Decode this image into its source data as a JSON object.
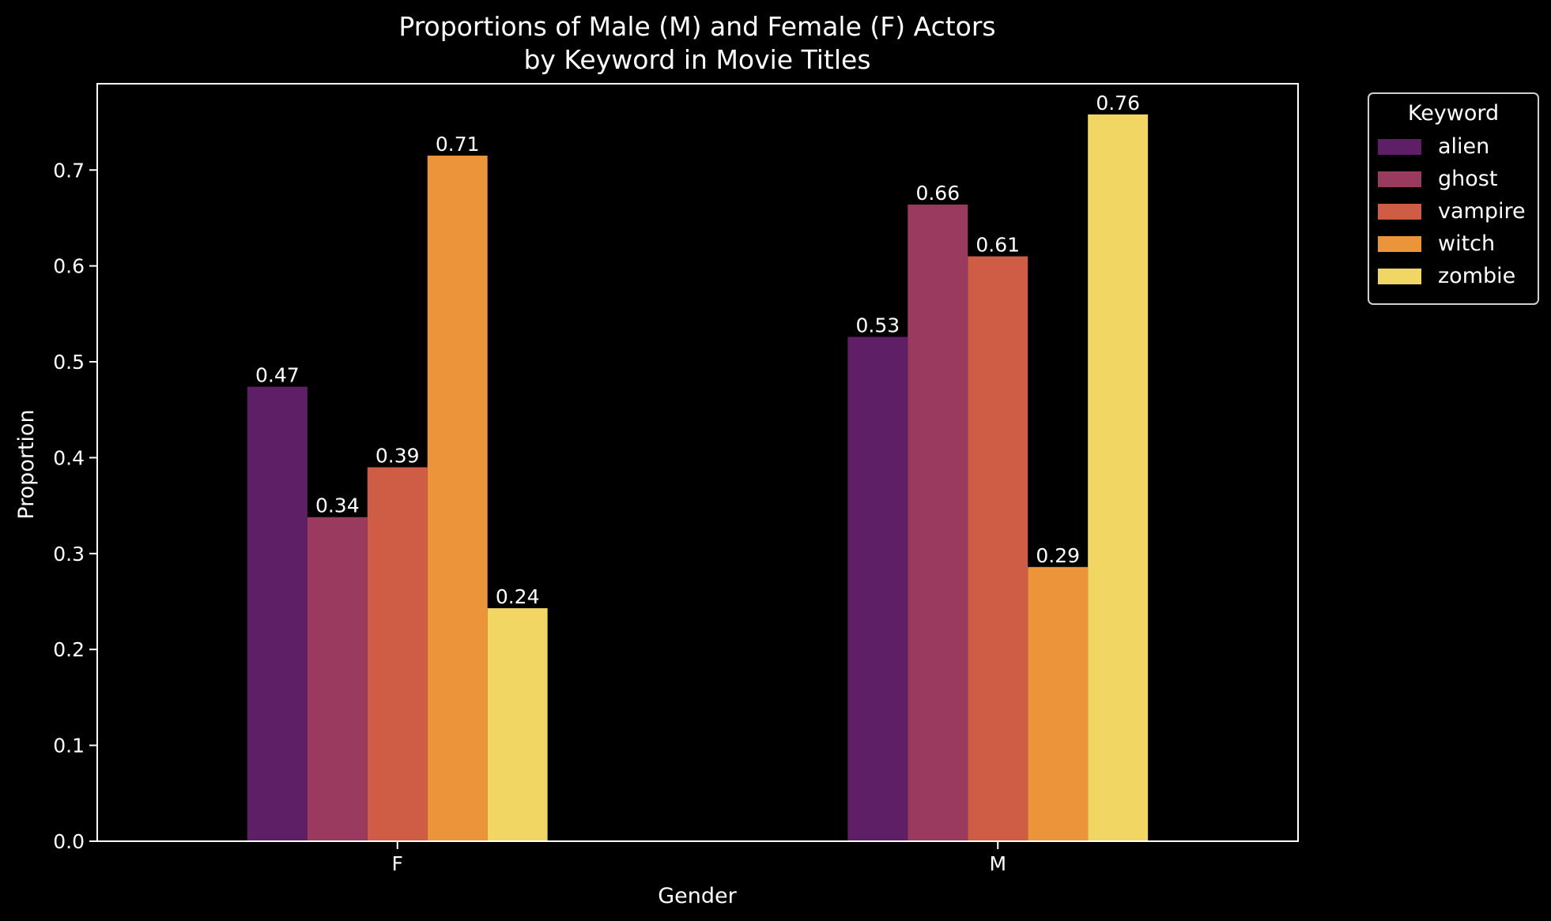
{
  "chart_data": {
    "type": "bar",
    "title": [
      "Proportions of Male (M) and Female (F) Actors",
      "by Keyword in Movie Titles"
    ],
    "xlabel": "Gender",
    "ylabel": "Proportion",
    "categories": [
      "F",
      "M"
    ],
    "ylim": [
      0,
      0.79
    ],
    "yticks": [
      0.0,
      0.1,
      0.2,
      0.3,
      0.4,
      0.5,
      0.6,
      0.7
    ],
    "ytick_labels": [
      "0.0",
      "0.1",
      "0.2",
      "0.3",
      "0.4",
      "0.5",
      "0.6",
      "0.7"
    ],
    "grid": false,
    "legend": {
      "title": "Keyword",
      "placement": "outside upper right"
    },
    "series": [
      {
        "name": "alien",
        "color": "#5f1f67",
        "values": [
          0.474,
          0.526
        ],
        "labels": [
          "0.47",
          "0.53"
        ]
      },
      {
        "name": "ghost",
        "color": "#9a3a5e",
        "values": [
          0.338,
          0.664
        ],
        "labels": [
          "0.34",
          "0.66"
        ]
      },
      {
        "name": "vampire",
        "color": "#cf5c45",
        "values": [
          0.39,
          0.61
        ],
        "labels": [
          "0.39",
          "0.61"
        ]
      },
      {
        "name": "witch",
        "color": "#ec9439",
        "values": [
          0.715,
          0.286
        ],
        "labels": [
          "0.71",
          "0.29"
        ]
      },
      {
        "name": "zombie",
        "color": "#f1d664",
        "values": [
          0.243,
          0.758
        ],
        "labels": [
          "0.24",
          "0.76"
        ]
      }
    ],
    "colors": {
      "background": "#000000",
      "foreground": "#ffffff"
    }
  }
}
